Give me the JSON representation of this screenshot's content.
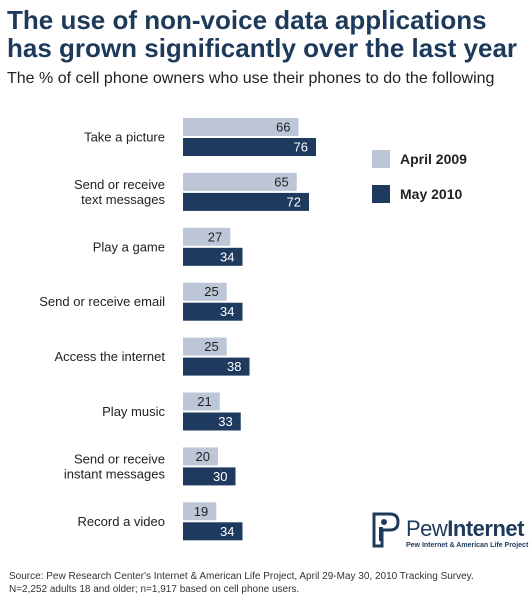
{
  "title_lines": [
    "The use of non-voice data applications",
    "has grown significantly over the last year"
  ],
  "subtitle": "The % of cell phone owners who use their phones to do the following",
  "chart_data": {
    "type": "bar",
    "orientation": "horizontal",
    "categories": [
      [
        "Take a picture"
      ],
      [
        "Send or receive",
        "text messages"
      ],
      [
        "Play a game"
      ],
      [
        "Send or receive email"
      ],
      [
        "Access the internet"
      ],
      [
        "Play music"
      ],
      [
        "Send or receive",
        "instant messages"
      ],
      [
        "Record a video"
      ]
    ],
    "series": [
      {
        "name": "April 2009",
        "values": [
          66,
          65,
          27,
          25,
          25,
          21,
          20,
          19
        ],
        "color": "#bcc6d6",
        "label_color": "#222222"
      },
      {
        "name": "May 2010",
        "values": [
          76,
          72,
          34,
          34,
          38,
          33,
          30,
          34
        ],
        "color": "#1e3a5f",
        "label_color": "#ffffff"
      }
    ],
    "xlim": [
      0,
      100
    ],
    "grid": false,
    "legend_position": "top-right",
    "data_labels": true
  },
  "logo": {
    "name_light": "Pew",
    "name_bold": "Internet",
    "tagline": "Pew Internet & American Life Project"
  },
  "source_lines": [
    "Source: Pew Research Center's Internet & American Life Project, April 29-May 30, 2010 Tracking Survey.",
    "N=2,252 adults 18 and older; n=1,917 based on cell phone users."
  ]
}
